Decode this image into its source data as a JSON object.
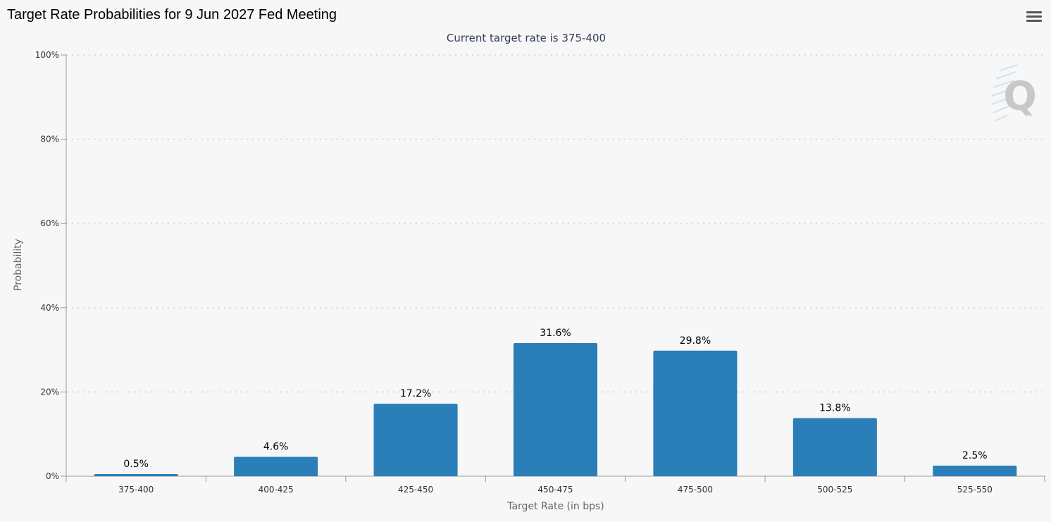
{
  "header": {
    "title": "Target Rate Probabilities for 9 Jun 2027 Fed Meeting",
    "menu_icon": "hamburger-menu-icon"
  },
  "watermark": {
    "icon": "quikstrike-logo-icon",
    "letter": "Q"
  },
  "colors": {
    "bar": "#2a7fb8",
    "grid": "#d9d9d9",
    "axis": "#999999",
    "background": "#f7f7f7"
  },
  "chart_data": {
    "type": "bar",
    "title": "Target Rate Probabilities for 9 Jun 2027 Fed Meeting",
    "subtitle": "Current target rate is 375-400",
    "categories": [
      "375-400",
      "400-425",
      "425-450",
      "450-475",
      "475-500",
      "500-525",
      "525-550"
    ],
    "values": [
      0.5,
      4.6,
      17.2,
      31.6,
      29.8,
      13.8,
      2.5
    ],
    "data_labels": [
      "0.5%",
      "4.6%",
      "17.2%",
      "31.6%",
      "29.8%",
      "13.8%",
      "2.5%"
    ],
    "xlabel": "Target Rate (in bps)",
    "ylabel": "Probability",
    "ylim": [
      0,
      100
    ],
    "yticks": [
      0,
      20,
      40,
      60,
      80,
      100
    ],
    "ytick_labels": [
      "0%",
      "20%",
      "40%",
      "60%",
      "80%",
      "100%"
    ],
    "grid": true,
    "legend": "none"
  }
}
